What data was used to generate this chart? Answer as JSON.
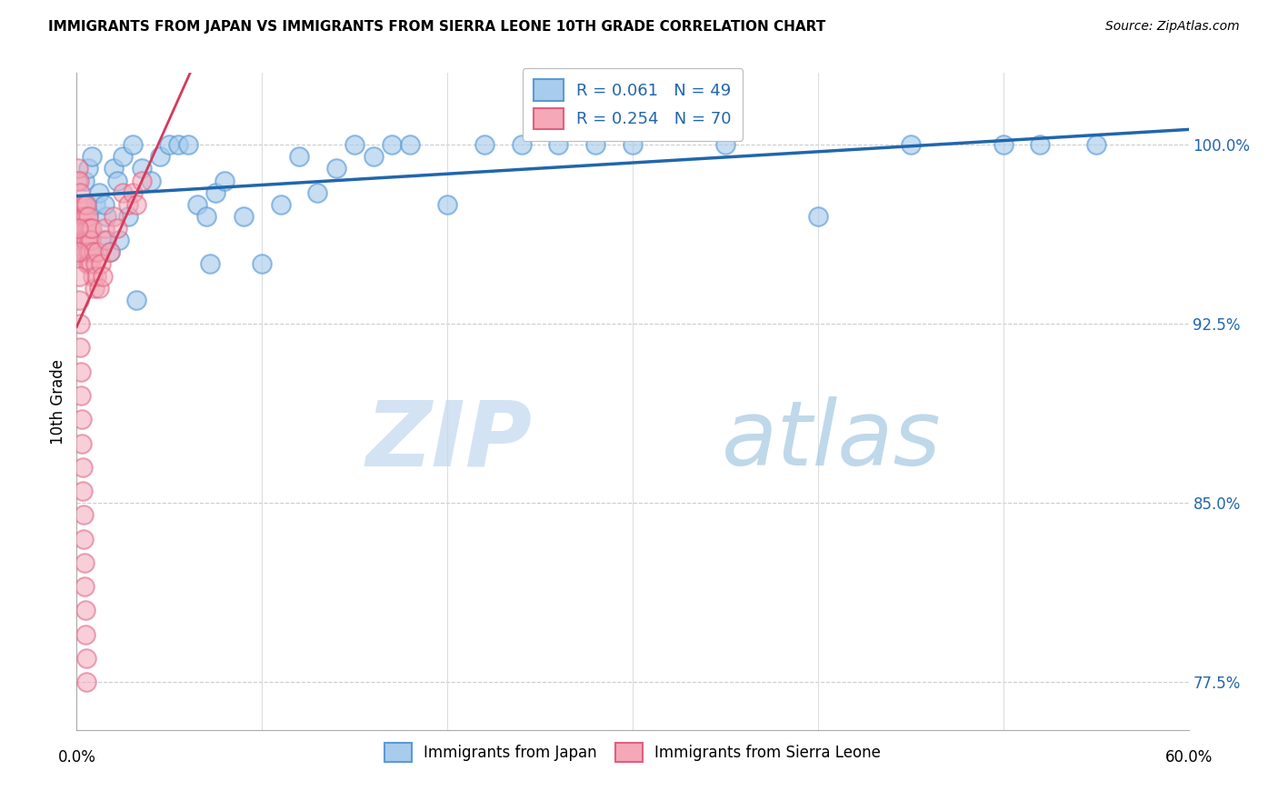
{
  "title": "IMMIGRANTS FROM JAPAN VS IMMIGRANTS FROM SIERRA LEONE 10TH GRADE CORRELATION CHART",
  "source": "Source: ZipAtlas.com",
  "ylabel": "10th Grade",
  "yticks": [
    77.5,
    85.0,
    92.5,
    100.0
  ],
  "ytick_labels": [
    "77.5%",
    "85.0%",
    "92.5%",
    "100.0%"
  ],
  "xmin": 0.0,
  "xmax": 60.0,
  "ymin": 75.5,
  "ymax": 103.0,
  "legend_japan_label": "R = 0.061   N = 49",
  "legend_sl_label": "R = 0.254   N = 70",
  "japan_color": "#a8ccec",
  "sl_color": "#f4a8b8",
  "japan_color_edge": "#5b9bd5",
  "sl_color_edge": "#e06080",
  "trend_japan_color": "#2166ac",
  "trend_sl_color": "#d63a5a",
  "watermark_zip": "ZIP",
  "watermark_atlas": "atlas",
  "japan_x": [
    0.4,
    0.6,
    0.8,
    1.0,
    1.2,
    1.4,
    1.6,
    1.8,
    2.0,
    2.2,
    2.5,
    2.8,
    3.0,
    3.5,
    4.0,
    4.5,
    5.0,
    5.5,
    6.0,
    6.5,
    7.0,
    7.5,
    8.0,
    9.0,
    10.0,
    11.0,
    12.0,
    13.0,
    14.0,
    15.0,
    16.0,
    17.0,
    18.0,
    20.0,
    22.0,
    24.0,
    26.0,
    28.0,
    30.0,
    35.0,
    40.0,
    45.0,
    50.0,
    52.0,
    55.0,
    2.3,
    1.5,
    3.2,
    7.2
  ],
  "japan_y": [
    98.5,
    99.0,
    99.5,
    97.5,
    98.0,
    96.0,
    97.0,
    95.5,
    99.0,
    98.5,
    99.5,
    97.0,
    100.0,
    99.0,
    98.5,
    99.5,
    100.0,
    100.0,
    100.0,
    97.5,
    97.0,
    98.0,
    98.5,
    97.0,
    95.0,
    97.5,
    99.5,
    98.0,
    99.0,
    100.0,
    99.5,
    100.0,
    100.0,
    97.5,
    100.0,
    100.0,
    100.0,
    100.0,
    100.0,
    100.0,
    97.0,
    100.0,
    100.0,
    100.0,
    100.0,
    96.0,
    97.5,
    93.5,
    95.0
  ],
  "sl_x": [
    0.05,
    0.08,
    0.1,
    0.12,
    0.15,
    0.18,
    0.2,
    0.22,
    0.25,
    0.28,
    0.3,
    0.32,
    0.35,
    0.38,
    0.4,
    0.42,
    0.45,
    0.48,
    0.5,
    0.52,
    0.55,
    0.58,
    0.6,
    0.62,
    0.65,
    0.68,
    0.7,
    0.72,
    0.75,
    0.78,
    0.8,
    0.85,
    0.9,
    0.95,
    1.0,
    1.05,
    1.1,
    1.2,
    1.3,
    1.4,
    1.5,
    1.6,
    1.8,
    2.0,
    2.2,
    2.5,
    2.8,
    3.0,
    3.2,
    3.5,
    0.06,
    0.09,
    0.11,
    0.14,
    0.16,
    0.19,
    0.21,
    0.24,
    0.27,
    0.29,
    0.31,
    0.34,
    0.37,
    0.39,
    0.41,
    0.44,
    0.47,
    0.49,
    0.51,
    0.54
  ],
  "sl_y": [
    98.5,
    97.5,
    99.0,
    97.0,
    98.5,
    96.5,
    98.0,
    97.0,
    96.5,
    97.5,
    96.0,
    97.0,
    95.5,
    96.5,
    97.5,
    96.0,
    97.0,
    95.5,
    97.5,
    96.0,
    95.0,
    96.5,
    95.5,
    97.0,
    96.0,
    95.0,
    96.5,
    95.5,
    96.0,
    95.0,
    96.5,
    94.5,
    95.5,
    94.0,
    95.0,
    94.5,
    95.5,
    94.0,
    95.0,
    94.5,
    96.5,
    96.0,
    95.5,
    97.0,
    96.5,
    98.0,
    97.5,
    98.0,
    97.5,
    98.5,
    96.5,
    95.5,
    94.5,
    93.5,
    92.5,
    91.5,
    90.5,
    89.5,
    88.5,
    87.5,
    86.5,
    85.5,
    84.5,
    83.5,
    82.5,
    81.5,
    80.5,
    79.5,
    78.5,
    77.5
  ]
}
